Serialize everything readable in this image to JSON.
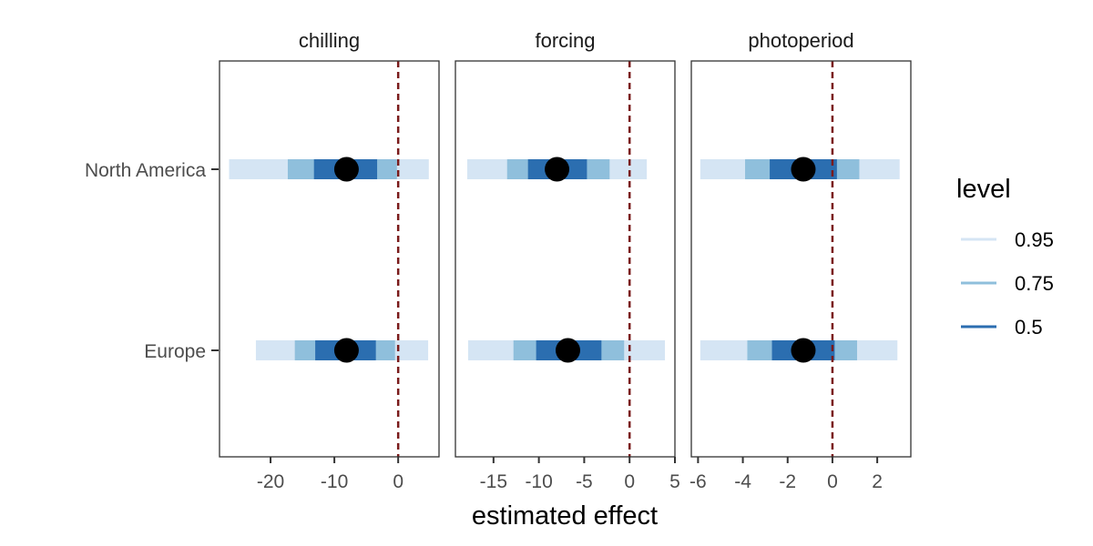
{
  "chart_data": {
    "type": "interval",
    "xlabel": "estimated effect",
    "rows": [
      "North America",
      "Europe"
    ],
    "reference_line": {
      "x": 0,
      "color": "#7a1b1b",
      "style": "dashed"
    },
    "levels": [
      {
        "label": "0.95",
        "color": "#d5e5f4"
      },
      {
        "label": "0.75",
        "color": "#8fbfdc"
      },
      {
        "label": "0.5",
        "color": "#2b6eb0"
      }
    ],
    "point_color": "#000000",
    "legend": {
      "title": "level",
      "position": "right"
    },
    "facets": [
      {
        "title": "chilling",
        "xlim": [
          -28,
          6.4
        ],
        "xticks": [
          -20,
          -10,
          0
        ],
        "tick_labels": [
          "-20",
          "-10",
          "0"
        ],
        "rows": [
          {
            "name": "North America",
            "point": -8.1,
            "intervals": {
              "0.95": [
                -26.5,
                4.8
              ],
              "0.75": [
                -17.3,
                -0.2
              ],
              "0.5": [
                -13.2,
                -3.3
              ]
            }
          },
          {
            "name": "Europe",
            "point": -8.1,
            "intervals": {
              "0.95": [
                -22.3,
                4.7
              ],
              "0.75": [
                -16.2,
                -0.5
              ],
              "0.5": [
                -13.0,
                -3.5
              ]
            }
          }
        ]
      },
      {
        "title": "forcing",
        "xlim": [
          -19.2,
          5
        ],
        "xticks": [
          -15,
          -10,
          -5,
          0,
          5
        ],
        "tick_labels": [
          "-15",
          "-10",
          "-5",
          "0",
          "5"
        ],
        "rows": [
          {
            "name": "North America",
            "point": -8.0,
            "intervals": {
              "0.95": [
                -17.9,
                1.9
              ],
              "0.75": [
                -13.5,
                -2.2
              ],
              "0.5": [
                -11.2,
                -4.7
              ]
            }
          },
          {
            "name": "Europe",
            "point": -6.8,
            "intervals": {
              "0.95": [
                -17.8,
                3.9
              ],
              "0.75": [
                -12.8,
                -0.6
              ],
              "0.5": [
                -10.3,
                -3.1
              ]
            }
          }
        ]
      },
      {
        "title": "photoperiod",
        "xlim": [
          -6.3,
          3.5
        ],
        "xticks": [
          -6,
          -4,
          -2,
          0,
          2
        ],
        "tick_labels": [
          "-6",
          "-4",
          "-2",
          "0",
          "2"
        ],
        "rows": [
          {
            "name": "North America",
            "point": -1.3,
            "intervals": {
              "0.95": [
                -5.9,
                3.0
              ],
              "0.75": [
                -3.9,
                1.2
              ],
              "0.5": [
                -2.8,
                0.2
              ]
            }
          },
          {
            "name": "Europe",
            "point": -1.3,
            "intervals": {
              "0.95": [
                -5.9,
                2.9
              ],
              "0.75": [
                -3.8,
                1.1
              ],
              "0.5": [
                -2.7,
                0.1
              ]
            }
          }
        ]
      }
    ]
  }
}
